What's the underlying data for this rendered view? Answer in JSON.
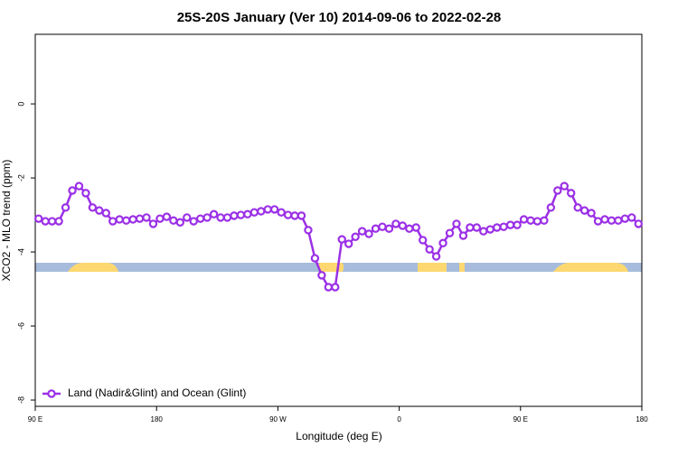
{
  "chart_data": {
    "type": "line",
    "title": "25S-20S January (Ver 10)   2014-09-06 to 2022-02-28",
    "x_label": "Longitude (deg E)",
    "y_label": "XCO2 - MLO trend (ppm)",
    "xlim": [
      90,
      540
    ],
    "xticks": [
      {
        "value": 90,
        "label": "90 E"
      },
      180,
      {
        "value": 270,
        "label": "90 W"
      },
      {
        "value": 360,
        "label": "0"
      },
      {
        "value": 450,
        "label": "90 E"
      },
      {
        "value": 540,
        "label": "180"
      }
    ],
    "ylim": [
      -8.17,
      1.88
    ],
    "yticks": [
      0,
      -2,
      -4,
      -6,
      -8
    ],
    "legend": "bottom-left",
    "x": [
      92.5,
      97.5,
      102.5,
      107.5,
      112.5,
      117.5,
      122.5,
      127.5,
      132.5,
      137.5,
      142.5,
      147.5,
      152.5,
      157.5,
      162.5,
      167.5,
      172.5,
      177.5,
      182.5,
      187.5,
      192.5,
      197.5,
      202.5,
      207.5,
      212.5,
      217.5,
      222.5,
      227.5,
      232.5,
      237.5,
      242.5,
      247.5,
      252.5,
      257.5,
      262.5,
      267.5,
      272.5,
      277.5,
      282.5,
      287.5,
      292.5,
      297.5,
      302.5,
      307.5,
      312.5,
      317.5,
      322.5,
      327.5,
      332.5,
      337.5,
      342.5,
      347.5,
      352.5,
      357.5,
      362.5,
      367.5,
      372.5,
      377.5,
      382.5,
      387.5,
      392.5,
      397.5,
      402.5,
      407.5,
      412.5,
      417.5,
      422.5,
      427.5,
      432.5,
      437.5,
      442.5,
      447.5,
      452.5,
      457.5,
      462.5,
      467.5,
      472.5,
      477.5,
      482.5,
      487.5,
      492.5,
      497.5,
      502.5,
      507.5,
      512.5,
      517.5,
      522.5,
      527.5,
      532.5,
      537.5
    ],
    "series": [
      {
        "name": "Land (Nadir&Glint) and Ocean (Glint)",
        "color": "#9b30e6",
        "values": [
          -3.1,
          -3.17,
          -3.17,
          -3.17,
          -2.8,
          -2.34,
          -2.22,
          -2.41,
          -2.8,
          -2.88,
          -2.95,
          -3.17,
          -3.12,
          -3.15,
          -3.12,
          -3.1,
          -3.07,
          -3.24,
          -3.1,
          -3.05,
          -3.15,
          -3.2,
          -3.07,
          -3.17,
          -3.1,
          -3.07,
          -2.98,
          -3.07,
          -3.07,
          -3.02,
          -3.0,
          -2.98,
          -2.93,
          -2.9,
          -2.85,
          -2.85,
          -2.93,
          -3.0,
          -3.02,
          -3.02,
          -3.41,
          -4.17,
          -4.63,
          -4.95,
          -4.95,
          -3.66,
          -3.78,
          -3.59,
          -3.44,
          -3.51,
          -3.37,
          -3.32,
          -3.37,
          -3.24,
          -3.29,
          -3.37,
          -3.34,
          -3.68,
          -3.93,
          -4.12,
          -3.76,
          -3.49,
          -3.24,
          -3.56,
          -3.34,
          -3.34,
          -3.44,
          -3.39,
          -3.34,
          -3.32,
          -3.27,
          -3.27,
          -3.12,
          -3.15,
          -3.17,
          -3.15,
          -2.8,
          -2.34,
          -2.22,
          -2.41,
          -2.8,
          -2.88,
          -2.95,
          -3.17,
          -3.12,
          -3.15,
          -3.15,
          -3.1,
          -3.07,
          -3.24
        ]
      }
    ]
  }
}
